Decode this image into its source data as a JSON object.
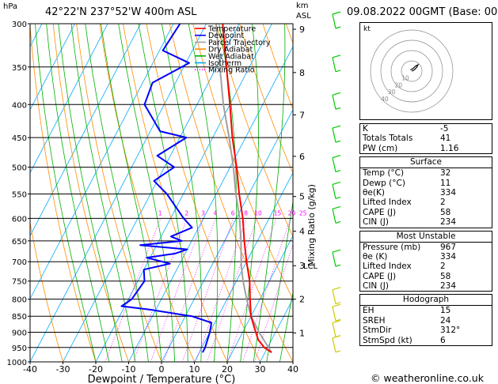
{
  "header": {
    "location": "42°22'N  237°52'W  400m  ASL",
    "hpa_unit": "hPa",
    "km_unit": "km",
    "asl_unit": "ASL",
    "datetime": "09.08.2022  00GMT  (Base: 00)"
  },
  "legend": [
    "Temperature",
    "Dewpoint",
    "Parcel Trajectory",
    "Dry Adiabat",
    "Wet Adiabat",
    "Isotherm",
    "Mixing Ratio"
  ],
  "colors": {
    "temperature": "#ff0000",
    "dewpoint": "#0000ff",
    "parcel": "#a0a0a0",
    "dry_adiabat": "#ff8c00",
    "wet_adiabat": "#00b000",
    "isotherm": "#00aaff",
    "mixing_ratio": "#ff00ff",
    "wind": "#00cc00",
    "wind_low": "#cccc00",
    "hodograph": "#000000"
  },
  "chart_data": {
    "type": "skew-t",
    "xlabel": "Dewpoint / Temperature (°C)",
    "x_ticks": [
      "-40",
      "-30",
      "-20",
      "-10",
      "0",
      "10",
      "20",
      "30",
      "40"
    ],
    "xlim": [
      -40,
      40
    ],
    "pressure_levels": [
      300,
      350,
      400,
      450,
      500,
      550,
      600,
      650,
      700,
      750,
      800,
      850,
      900,
      950,
      1000
    ],
    "pressure_labels": [
      "300",
      "350",
      "400",
      "450",
      "500",
      "550",
      "600",
      "650",
      "700",
      "750",
      "800",
      "850",
      "900",
      "950",
      "1000"
    ],
    "km_ticks": [
      {
        "label": "9",
        "p": 306
      },
      {
        "label": "8",
        "p": 357
      },
      {
        "label": "7",
        "p": 415
      },
      {
        "label": "6",
        "p": 481
      },
      {
        "label": "5",
        "p": 555
      },
      {
        "label": "4",
        "p": 628
      },
      {
        "label": "3",
        "p": 710
      },
      {
        "label": "2",
        "p": 800
      },
      {
        "label": "1",
        "p": 902
      }
    ],
    "lcl_label": "LCL",
    "lcl_p": 710,
    "mixing_ratio_label": "Mixing Ratio (g/kg)",
    "mixing_ratio_values": [
      "1",
      "2",
      "3",
      "4",
      "6",
      "8",
      "10",
      "15",
      "20",
      "25"
    ],
    "temperature": [
      {
        "p": 967,
        "t": 32
      },
      {
        "p": 950,
        "t": 29
      },
      {
        "p": 925,
        "t": 26
      },
      {
        "p": 900,
        "t": 24
      },
      {
        "p": 875,
        "t": 22
      },
      {
        "p": 850,
        "t": 20
      },
      {
        "p": 800,
        "t": 17
      },
      {
        "p": 750,
        "t": 14
      },
      {
        "p": 700,
        "t": 10
      },
      {
        "p": 650,
        "t": 6
      },
      {
        "p": 600,
        "t": 2
      },
      {
        "p": 550,
        "t": -3
      },
      {
        "p": 500,
        "t": -8
      },
      {
        "p": 450,
        "t": -14
      },
      {
        "p": 400,
        "t": -20
      },
      {
        "p": 350,
        "t": -27
      },
      {
        "p": 300,
        "t": -35
      }
    ],
    "dewpoint": [
      {
        "p": 967,
        "t": 11
      },
      {
        "p": 950,
        "t": 11
      },
      {
        "p": 900,
        "t": 10
      },
      {
        "p": 870,
        "t": 9
      },
      {
        "p": 850,
        "t": 2
      },
      {
        "p": 830,
        "t": -12
      },
      {
        "p": 820,
        "t": -21
      },
      {
        "p": 800,
        "t": -19
      },
      {
        "p": 750,
        "t": -18
      },
      {
        "p": 720,
        "t": -20
      },
      {
        "p": 705,
        "t": -13
      },
      {
        "p": 690,
        "t": -21
      },
      {
        "p": 680,
        "t": -13
      },
      {
        "p": 670,
        "t": -10
      },
      {
        "p": 660,
        "t": -25
      },
      {
        "p": 650,
        "t": -13
      },
      {
        "p": 640,
        "t": -17
      },
      {
        "p": 620,
        "t": -12
      },
      {
        "p": 600,
        "t": -16
      },
      {
        "p": 550,
        "t": -25
      },
      {
        "p": 525,
        "t": -31
      },
      {
        "p": 500,
        "t": -27
      },
      {
        "p": 480,
        "t": -34
      },
      {
        "p": 450,
        "t": -28
      },
      {
        "p": 440,
        "t": -37
      },
      {
        "p": 400,
        "t": -46
      },
      {
        "p": 370,
        "t": -47
      },
      {
        "p": 345,
        "t": -39
      },
      {
        "p": 330,
        "t": -49
      },
      {
        "p": 300,
        "t": -48
      }
    ],
    "parcel": [
      {
        "p": 967,
        "t": 32
      },
      {
        "p": 900,
        "t": 25
      },
      {
        "p": 850,
        "t": 20
      },
      {
        "p": 800,
        "t": 16
      },
      {
        "p": 750,
        "t": 12
      },
      {
        "p": 710,
        "t": 9
      },
      {
        "p": 650,
        "t": 5
      },
      {
        "p": 600,
        "t": 1
      },
      {
        "p": 550,
        "t": -4
      },
      {
        "p": 500,
        "t": -9
      },
      {
        "p": 450,
        "t": -15
      },
      {
        "p": 400,
        "t": -22
      },
      {
        "p": 350,
        "t": -29
      },
      {
        "p": 300,
        "t": -37
      }
    ],
    "wind_barb_levels": [
      300,
      350,
      400,
      450,
      500,
      550,
      600,
      700,
      800,
      850,
      900,
      950
    ]
  },
  "indices": {
    "top": [
      {
        "label": "K",
        "value": "-5"
      },
      {
        "label": "Totals Totals",
        "value": "41"
      },
      {
        "label": "PW (cm)",
        "value": "1.16"
      }
    ],
    "surface": {
      "title": "Surface",
      "rows": [
        {
          "label": "Temp (°C)",
          "value": "32"
        },
        {
          "label": "Dewp (°C)",
          "value": "11"
        },
        {
          "label": "θe(K)",
          "value": "334"
        },
        {
          "label": "Lifted Index",
          "value": "2"
        },
        {
          "label": "CAPE (J)",
          "value": "58"
        },
        {
          "label": "CIN (J)",
          "value": "234"
        }
      ]
    },
    "most_unstable": {
      "title": "Most Unstable",
      "rows": [
        {
          "label": "Pressure (mb)",
          "value": "967"
        },
        {
          "label": "θe (K)",
          "value": "334"
        },
        {
          "label": "Lifted Index",
          "value": "2"
        },
        {
          "label": "CAPE (J)",
          "value": "58"
        },
        {
          "label": "CIN (J)",
          "value": "234"
        }
      ]
    },
    "hodograph": {
      "title": "Hodograph",
      "rows": [
        {
          "label": "EH",
          "value": "15"
        },
        {
          "label": "SREH",
          "value": "24"
        },
        {
          "label": "StmDir",
          "value": "312°"
        },
        {
          "label": "StmSpd (kt)",
          "value": "6"
        }
      ]
    }
  },
  "hodograph_plot": {
    "unit_label": "kt",
    "ring_labels": [
      "10",
      "20",
      "30",
      "40"
    ],
    "trace": [
      [
        0,
        0
      ],
      [
        2,
        1
      ],
      [
        4,
        3
      ],
      [
        5,
        5
      ],
      [
        3,
        4
      ],
      [
        1,
        2
      ],
      [
        -1,
        1
      ]
    ]
  },
  "credit": "© weatheronline.co.uk"
}
